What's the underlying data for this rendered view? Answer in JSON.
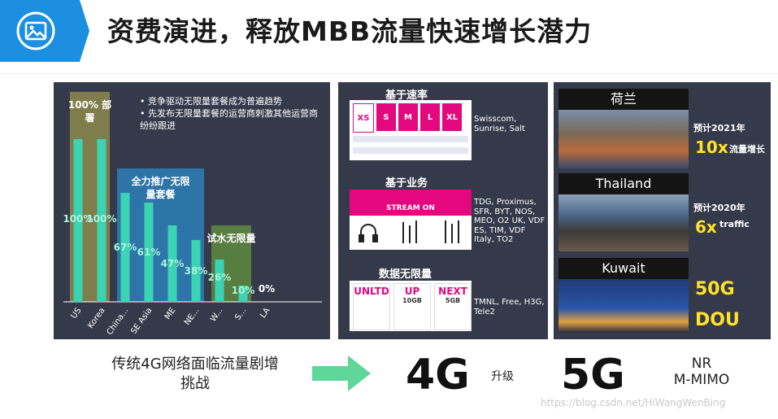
{
  "header": {
    "title": "资费演进，释放MBB流量快速增长潜力",
    "icon": "image-icon",
    "accent": "#1d8fe0"
  },
  "chart_data": {
    "type": "bar",
    "categories": [
      "US",
      "Korea",
      "China...",
      "SE Asia",
      "ME",
      "NE...",
      "W...",
      "S...",
      "LA"
    ],
    "values": [
      100,
      100,
      67,
      61,
      47,
      38,
      26,
      10,
      0
    ],
    "value_labels": [
      "100%",
      "100%",
      "67%",
      "61%",
      "47%",
      "38%",
      "26%",
      "10%",
      "0%"
    ],
    "ylim": [
      0,
      100
    ],
    "groups": [
      {
        "label": "100% 部署",
        "from": 0,
        "to": 1,
        "color": "#8d8a4e"
      },
      {
        "label": "全力推广无限量套餐",
        "from": 2,
        "to": 5,
        "color": "#2b7fb8"
      },
      {
        "label": "试水无限量",
        "from": 6,
        "to": 7,
        "color": "#5e8a3f"
      }
    ],
    "bullets": [
      "竞争驱动无限量套餐成为普遍趋势",
      "先发布无限量套餐的运营商刺激其他运营商纷纷跟进"
    ],
    "bar_color": "#3bd3b3"
  },
  "tariff": {
    "rate": {
      "title": "基于速率",
      "sizes": [
        "XS",
        "S",
        "M",
        "L",
        "XL"
      ],
      "operators": "Swisscom, Sunrise, Salt"
    },
    "service": {
      "title": "基于业务",
      "banner": "STREAM ON",
      "operators": "TDG, Proximus, SFR, BYT, NOS, MEO, O2 UK, VDF ES, TIM, VDF Italy, TO2"
    },
    "unlimited": {
      "title": "数据无限量",
      "plans": [
        "UNLTD",
        "UP",
        "NEXT"
      ],
      "plan_sub": [
        "",
        "10GB",
        "5GB"
      ],
      "operators": "TMNL, Free, H3G, Tele2"
    }
  },
  "growth": [
    {
      "country": "荷兰",
      "forecast": "预计2021年",
      "factor": "10x",
      "note": "流量增长"
    },
    {
      "country": "Thailand",
      "forecast": "预计2020年",
      "factor": "6x",
      "note": "traffic"
    },
    {
      "country": "Kuwait",
      "lines": [
        "50G",
        "DOU"
      ]
    }
  ],
  "bottom": {
    "challenge": "传统4G网络面临流量剧增挑战",
    "from": "4G",
    "upgrade": "升级",
    "to": "5G",
    "tech": [
      "NR",
      "M-MIMO"
    ]
  },
  "watermark": "https://blog.csdn.net/HiWangWenBing"
}
